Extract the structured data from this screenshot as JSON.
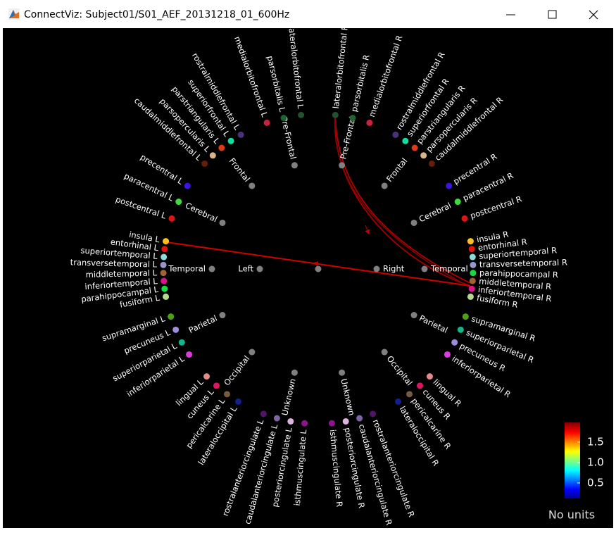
{
  "window": {
    "title": "ConnectViz: Subject01/S01_AEF_20131218_01_600Hz"
  },
  "hemispheres": [
    {
      "label": "Left",
      "lobes": [
        {
          "label": "Pre-Frontal",
          "regions": [
            {
              "label": "lateralorbitofrontal L",
              "color": "#23502d"
            },
            {
              "label": "parsorbitalis L",
              "color": "#1e6432"
            },
            {
              "label": "medialorbitofrontal L",
              "color": "#c8233c"
            }
          ]
        },
        {
          "label": "Frontal",
          "regions": [
            {
              "label": "rostralmiddlefrontal L",
              "color": "#4b327d"
            },
            {
              "label": "superiorfrontal L",
              "color": "#14dca0"
            },
            {
              "label": "parstriangularis L",
              "color": "#dc3c14"
            },
            {
              "label": "parsopercularis L",
              "color": "#dcb48c"
            },
            {
              "label": "caudalmiddlefrontal L",
              "color": "#641e0a"
            }
          ]
        },
        {
          "label": "Cerebral",
          "regions": [
            {
              "label": "precentral L",
              "color": "#3c14dc"
            },
            {
              "label": "paracentral L",
              "color": "#3cdc3c"
            },
            {
              "label": "postcentral L",
              "color": "#dc1414"
            }
          ]
        },
        {
          "label": "Temporal",
          "regions": [
            {
              "label": "insula L",
              "color": "#ffc020"
            },
            {
              "label": "entorhinal L",
              "color": "#dc140a"
            },
            {
              "label": "superiortemporal L",
              "color": "#8cdcdc"
            },
            {
              "label": "transversetemporal L",
              "color": "#9696c8"
            },
            {
              "label": "middletemporal L",
              "color": "#a06432"
            },
            {
              "label": "inferiortemporal L",
              "color": "#dc148c"
            },
            {
              "label": "parahippocampal L",
              "color": "#14dc3c"
            },
            {
              "label": "fusiform L",
              "color": "#b4dc8c"
            }
          ]
        },
        {
          "label": "Parietal",
          "regions": [
            {
              "label": "supramarginal L",
              "color": "#50a014"
            },
            {
              "label": "precuneus L",
              "color": "#a08cdc"
            },
            {
              "label": "superiorparietal L",
              "color": "#14b48c"
            },
            {
              "label": "inferiorparietal L",
              "color": "#dc3cdc"
            }
          ]
        },
        {
          "label": "Occipital",
          "regions": [
            {
              "label": "lingual L",
              "color": "#e18c8c"
            },
            {
              "label": "cuneus L",
              "color": "#dc1464"
            },
            {
              "label": "pericalcarine L",
              "color": "#785a3c"
            },
            {
              "label": "lateraloccipital L",
              "color": "#141e8c"
            }
          ]
        },
        {
          "label": "Unknown",
          "regions": [
            {
              "label": "rostralanteriorcingulate L",
              "color": "#501464"
            },
            {
              "label": "caudalanteriorcingulate L",
              "color": "#7d64a0"
            },
            {
              "label": "posteriorcingulate L",
              "color": "#dcb4dc"
            },
            {
              "label": "isthmuscingulate L",
              "color": "#8c148c"
            }
          ]
        }
      ]
    },
    {
      "label": "Right",
      "lobes": [
        {
          "label": "Pre-Frontal",
          "regions": [
            {
              "label": "lateralorbitofrontal R",
              "color": "#23502d"
            },
            {
              "label": "parsorbitalis R",
              "color": "#1e6432"
            },
            {
              "label": "medialorbitofrontal R",
              "color": "#c8233c"
            }
          ]
        },
        {
          "label": "Frontal",
          "regions": [
            {
              "label": "rostralmiddlefrontal R",
              "color": "#4b327d"
            },
            {
              "label": "superiorfrontal R",
              "color": "#14dca0"
            },
            {
              "label": "parstriangularis R",
              "color": "#dc3c14"
            },
            {
              "label": "parsopercularis R",
              "color": "#dcb48c"
            },
            {
              "label": "caudalmiddlefrontal R",
              "color": "#641e0a"
            }
          ]
        },
        {
          "label": "Cerebral",
          "regions": [
            {
              "label": "precentral R",
              "color": "#3c14dc"
            },
            {
              "label": "paracentral R",
              "color": "#3cdc3c"
            },
            {
              "label": "postcentral R",
              "color": "#dc1414"
            }
          ]
        },
        {
          "label": "Temporal",
          "regions": [
            {
              "label": "insula R",
              "color": "#ffc020"
            },
            {
              "label": "entorhinal R",
              "color": "#dc140a"
            },
            {
              "label": "superiortemporal R",
              "color": "#8cdcdc"
            },
            {
              "label": "transversetemporal R",
              "color": "#9696c8"
            },
            {
              "label": "parahippocampal R",
              "color": "#14dc3c"
            },
            {
              "label": "middletemporal R",
              "color": "#a06432"
            },
            {
              "label": "inferiortemporal R",
              "color": "#dc148c"
            },
            {
              "label": "fusiform R",
              "color": "#b4dc8c"
            }
          ]
        },
        {
          "label": "Parietal",
          "regions": [
            {
              "label": "supramarginal R",
              "color": "#50a014"
            },
            {
              "label": "superiorparietal R",
              "color": "#14b48c"
            },
            {
              "label": "precuneus R",
              "color": "#a08cdc"
            },
            {
              "label": "inferiorparietal R",
              "color": "#dc3cdc"
            }
          ]
        },
        {
          "label": "Occipital",
          "regions": [
            {
              "label": "lingual R",
              "color": "#e18c8c"
            },
            {
              "label": "cuneus R",
              "color": "#dc1464"
            },
            {
              "label": "pericalcarine R",
              "color": "#785a3c"
            },
            {
              "label": "lateraloccipital R",
              "color": "#141e8c"
            }
          ]
        },
        {
          "label": "Unknown",
          "regions": [
            {
              "label": "rostralanteriorcingulate R",
              "color": "#501464"
            },
            {
              "label": "caudalanteriorcingulate R",
              "color": "#7d64a0"
            },
            {
              "label": "posteriorcingulate R",
              "color": "#dcb4dc"
            },
            {
              "label": "isthmuscingulate R",
              "color": "#8c148c"
            }
          ]
        }
      ]
    }
  ],
  "colorbar": {
    "lim": [
      0.12,
      1.98
    ],
    "ticks": [
      {
        "value": 0.5,
        "label": "0.5"
      },
      {
        "value": 1,
        "label": "1.0"
      },
      {
        "value": 1.5,
        "label": "1.5"
      }
    ],
    "unit_label": "No units"
  }
}
